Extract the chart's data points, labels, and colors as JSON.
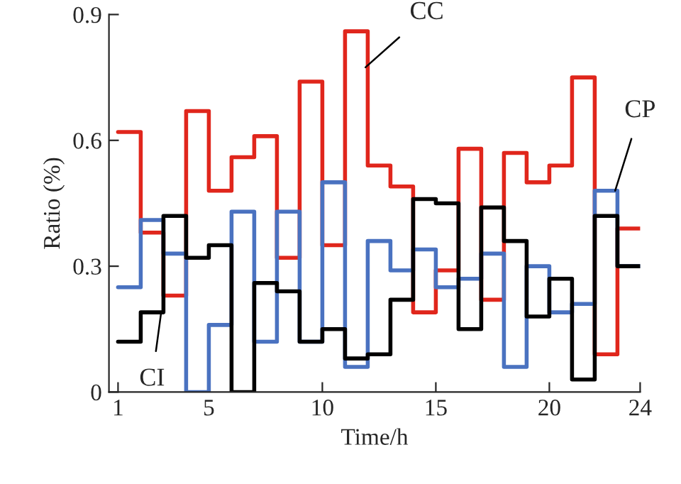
{
  "chart_data": {
    "type": "step",
    "xlabel": "Time/h",
    "ylabel": "Ratio (%)",
    "x": [
      1,
      2,
      3,
      4,
      5,
      6,
      7,
      8,
      9,
      10,
      11,
      12,
      13,
      14,
      15,
      16,
      17,
      18,
      19,
      20,
      21,
      22,
      23,
      24
    ],
    "series": [
      {
        "name": "CC",
        "color": "#e0261c",
        "values": [
          0.62,
          0.38,
          0.23,
          0.67,
          0.48,
          0.56,
          0.61,
          0.32,
          0.74,
          0.35,
          0.86,
          0.54,
          0.49,
          0.19,
          0.29,
          0.58,
          0.22,
          0.57,
          0.5,
          0.54,
          0.75,
          0.09,
          0.39,
          0.39
        ]
      },
      {
        "name": "CP",
        "color": "#4a72c0",
        "values": [
          0.25,
          0.41,
          0.33,
          0.0,
          0.16,
          0.43,
          0.12,
          0.43,
          0.12,
          0.5,
          0.06,
          0.36,
          0.29,
          0.34,
          0.25,
          0.27,
          0.33,
          0.06,
          0.3,
          0.19,
          0.21,
          0.48,
          0.3,
          0.3
        ]
      },
      {
        "name": "CI",
        "color": "#000000",
        "values": [
          0.12,
          0.19,
          0.42,
          0.32,
          0.35,
          0.0,
          0.26,
          0.24,
          0.12,
          0.15,
          0.08,
          0.09,
          0.22,
          0.46,
          0.45,
          0.15,
          0.44,
          0.36,
          0.18,
          0.27,
          0.03,
          0.42,
          0.3,
          0.3
        ]
      }
    ],
    "xlim": [
      0.6,
      24
    ],
    "ylim": [
      0,
      0.9
    ],
    "xticks": [
      1,
      5,
      10,
      15,
      20,
      24
    ],
    "yticks": [
      0,
      0.3,
      0.6,
      0.9
    ],
    "grid": false
  }
}
